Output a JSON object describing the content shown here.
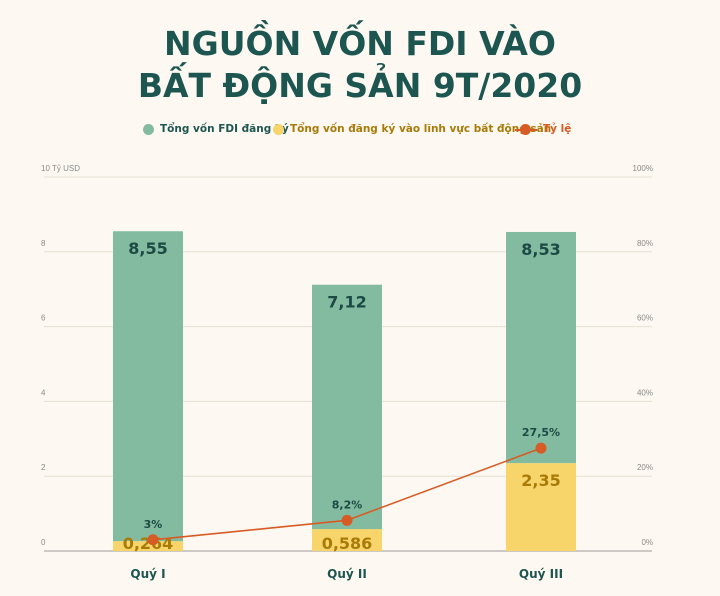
{
  "title_line1": "NGUỒN VỐN FDI VÀO",
  "title_line2": "BẤT ĐỘNG SẢN 9T/2020",
  "legend": {
    "fdi": "Tổng vốn FDI đăng ký",
    "realestate": "Tổng vốn đăng ký vào lĩnh vực bất động sản",
    "ratio": "Tỷ lệ"
  },
  "colors": {
    "fdi": "#82bba0",
    "realestate": "#f7d56a",
    "ratio": "#d75b24",
    "title": "#1d5650",
    "fdi_label": "#1d4a44",
    "realestate_label": "#a87a08",
    "ratio_label": "#1d4a44"
  },
  "chart_data": {
    "type": "bar",
    "stacked": true,
    "categories": [
      "Quý I",
      "Quý II",
      "Quý III"
    ],
    "series": [
      {
        "name": "Tổng vốn FDI đăng ký",
        "values": [
          8.55,
          7.12,
          8.53
        ],
        "labels": [
          "8,55",
          "7,12",
          "8,53"
        ]
      },
      {
        "name": "Tổng vốn đăng ký vào lĩnh vực bất động sản",
        "values": [
          0.264,
          0.586,
          2.35
        ],
        "labels": [
          "0,264",
          "0,586",
          "2,35"
        ]
      },
      {
        "name": "Tỷ lệ",
        "type": "line",
        "axis": "right",
        "values": [
          3,
          8.2,
          27.5
        ],
        "labels": [
          "3%",
          "8,2%",
          "27,5%"
        ]
      }
    ],
    "y_left": {
      "label": "10 Tỷ USD",
      "ticks": [
        "0",
        "2",
        "4",
        "6",
        "8"
      ],
      "ylim": [
        0,
        10
      ]
    },
    "y_right": {
      "ticks": [
        "0%",
        "20%",
        "40%",
        "60%",
        "80%",
        "100%"
      ],
      "ylim": [
        0,
        100
      ]
    },
    "grid": true
  }
}
